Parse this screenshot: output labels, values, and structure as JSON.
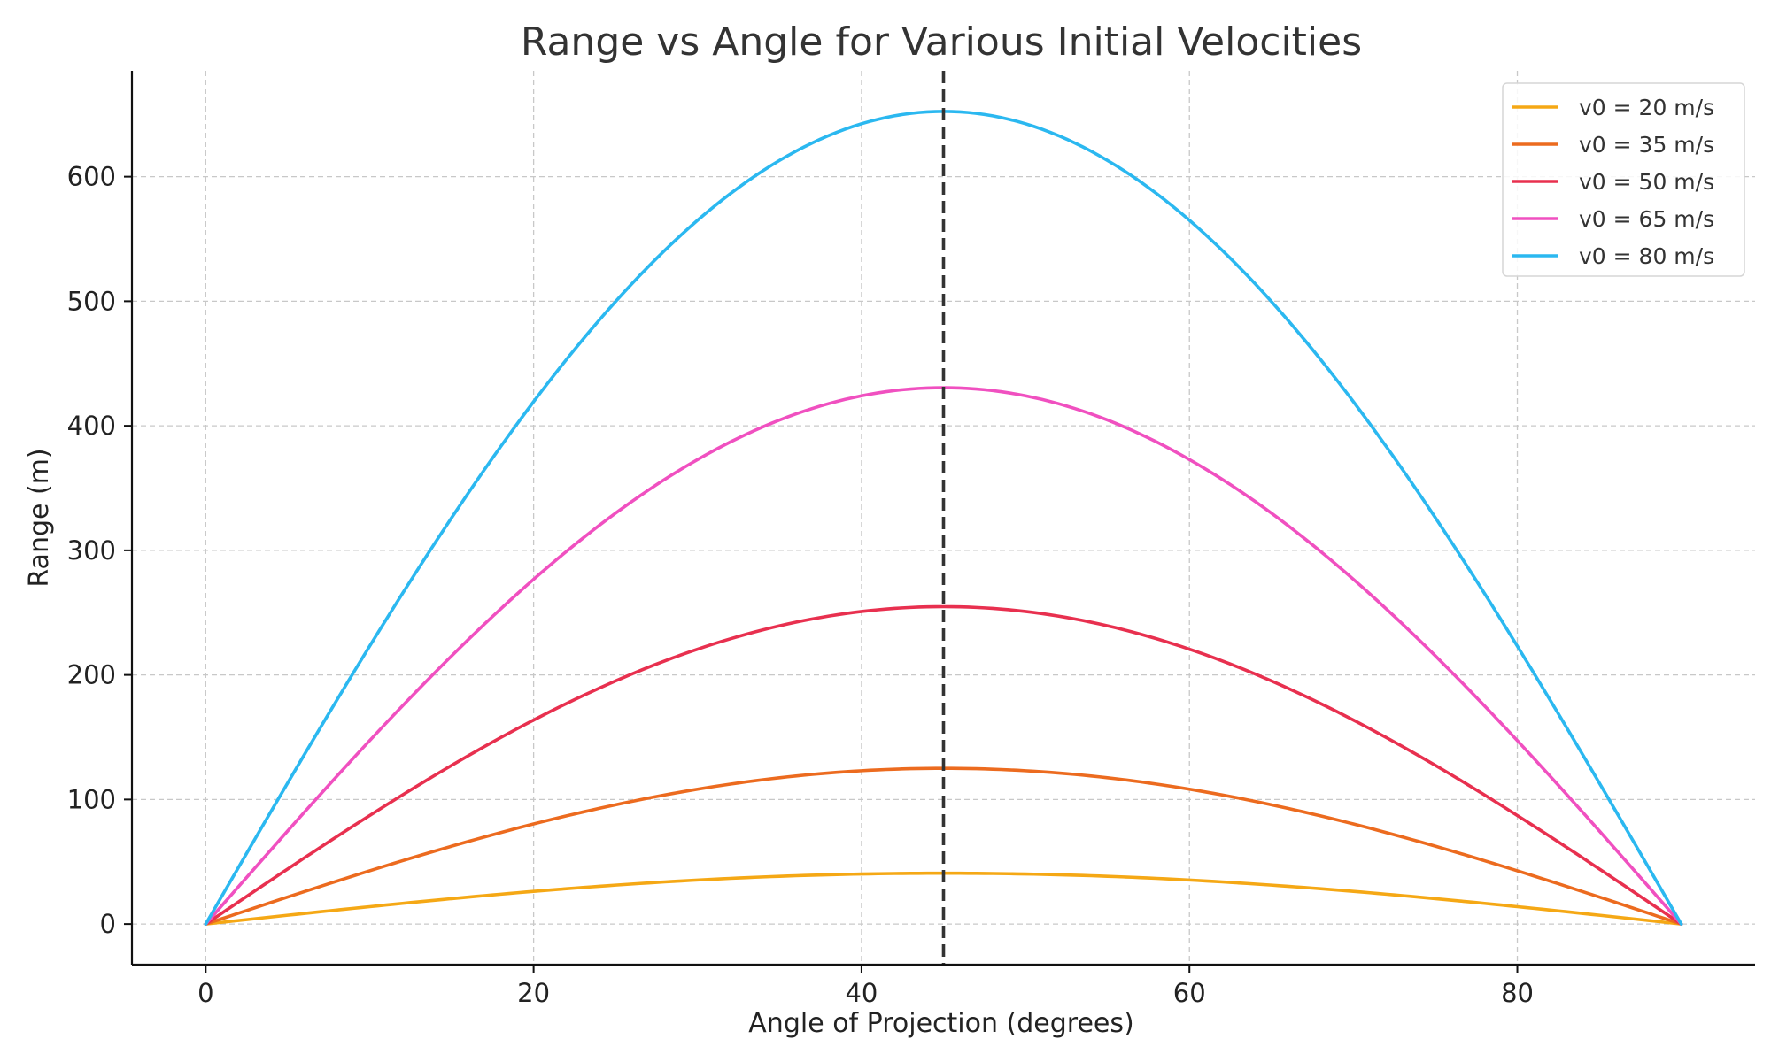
{
  "chart_data": {
    "type": "line",
    "title": "Range vs Angle for Various Initial Velocities",
    "xlabel": "Angle of Projection (degrees)",
    "ylabel": "Range (m)",
    "xlim": [
      -4.5,
      94.5
    ],
    "ylim": [
      -32.6,
      685
    ],
    "xticks": [
      0,
      20,
      40,
      60,
      80
    ],
    "yticks": [
      0,
      100,
      200,
      300,
      400,
      500,
      600
    ],
    "grid": true,
    "legend_position": "top-right",
    "reference_line": {
      "x": 45,
      "style": "dashed",
      "color": "#333333"
    },
    "x": [
      0,
      5,
      10,
      15,
      20,
      25,
      30,
      35,
      40,
      45,
      50,
      55,
      60,
      65,
      70,
      75,
      80,
      85,
      90
    ],
    "series": [
      {
        "name": "v0 = 20 m/s",
        "color": "#f5a815",
        "values": [
          0,
          7.1,
          14.0,
          20.4,
          26.2,
          31.2,
          35.3,
          38.3,
          40.2,
          40.8,
          40.2,
          38.3,
          35.3,
          31.2,
          26.2,
          20.4,
          14.0,
          7.1,
          0
        ]
      },
      {
        "name": "v0 = 35 m/s",
        "color": "#ec6b1f",
        "values": [
          0,
          21.7,
          42.7,
          62.4,
          80.3,
          95.6,
          108.2,
          117.4,
          123.1,
          125.0,
          123.1,
          117.4,
          108.2,
          95.6,
          80.3,
          62.4,
          42.7,
          21.7,
          0
        ]
      },
      {
        "name": "v0 = 50 m/s",
        "color": "#e8304f",
        "values": [
          0,
          44.3,
          87.2,
          127.4,
          163.8,
          195.3,
          220.7,
          239.6,
          251.4,
          254.8,
          251.4,
          239.6,
          220.7,
          195.3,
          163.8,
          127.4,
          87.2,
          44.3,
          0
        ]
      },
      {
        "name": "v0 = 65 m/s",
        "color": "#f050c0",
        "values": [
          0,
          74.9,
          147.4,
          215.3,
          276.6,
          329.7,
          372.9,
          404.8,
          424.6,
          430.6,
          424.6,
          404.8,
          372.9,
          329.7,
          276.6,
          215.3,
          147.4,
          74.9,
          0
        ]
      },
      {
        "name": "v0 = 80 m/s",
        "color": "#2bb8f0",
        "values": [
          0,
          113.5,
          223.3,
          326.2,
          419.3,
          499.6,
          565.2,
          614.0,
          643.3,
          652.4,
          643.3,
          614.0,
          565.2,
          499.6,
          419.3,
          326.2,
          223.3,
          113.5,
          0
        ]
      }
    ]
  }
}
